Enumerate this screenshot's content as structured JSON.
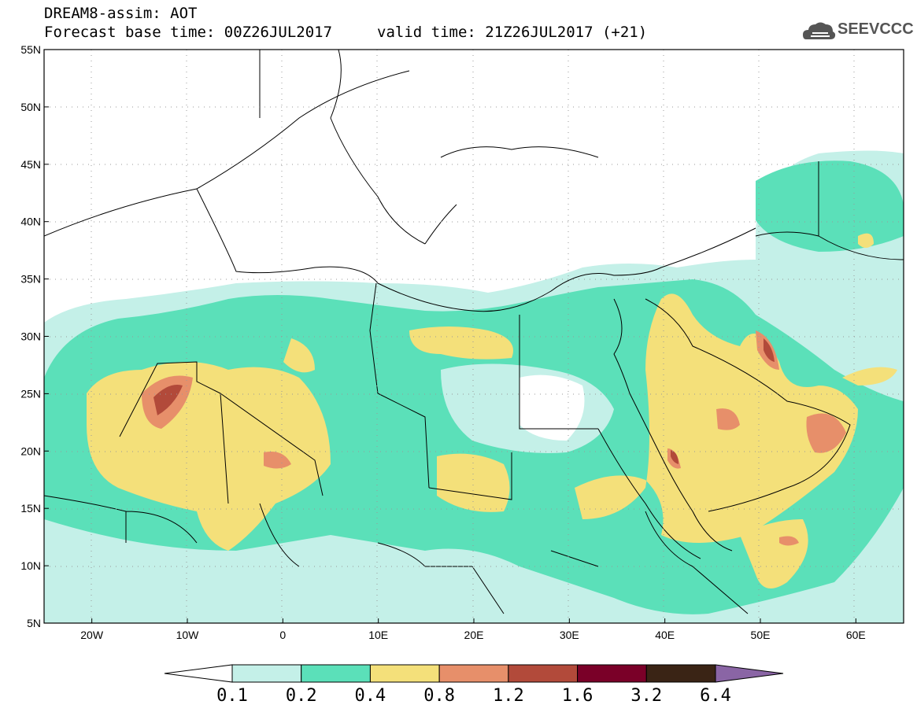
{
  "header": {
    "title": "DREAM8-assim: AOT",
    "base_time": "Forecast base time: 00Z26JUL2017",
    "valid_time": "valid time: 21Z26JUL2017 (+21)"
  },
  "logo": {
    "text": "SEEVCCC",
    "icon": "cloud-icon"
  },
  "map": {
    "lon_range": [
      -25,
      65
    ],
    "lat_range": [
      5,
      55
    ],
    "lon_ticks": [
      "20W",
      "10W",
      "0",
      "10E",
      "20E",
      "30E",
      "40E",
      "50E",
      "60E"
    ],
    "lat_ticks": [
      "5N",
      "10N",
      "15N",
      "20N",
      "25N",
      "30N",
      "35N",
      "40N",
      "45N",
      "50N",
      "55N"
    ]
  },
  "colorbar": {
    "labels": [
      "0.1",
      "0.2",
      "0.4",
      "0.8",
      "1.2",
      "1.6",
      "3.2",
      "6.4"
    ],
    "colors": [
      "#ffffff",
      "#c4f0e8",
      "#5be0b9",
      "#f4e07a",
      "#e78f6a",
      "#b24a3a",
      "#7a0028",
      "#3a2415",
      "#8a65a5"
    ]
  }
}
